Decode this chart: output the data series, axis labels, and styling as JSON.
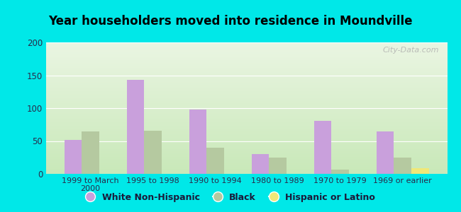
{
  "title": "Year householders moved into residence in Moundville",
  "categories": [
    "1999 to March\n2000",
    "1995 to 1998",
    "1990 to 1994",
    "1980 to 1989",
    "1970 to 1979",
    "1969 or earlier"
  ],
  "white_non_hispanic": [
    52,
    143,
    98,
    30,
    81,
    65
  ],
  "black": [
    65,
    66,
    40,
    25,
    6,
    25
  ],
  "hispanic_or_latino": [
    0,
    0,
    0,
    0,
    0,
    9
  ],
  "white_color": "#c9a0dc",
  "black_color": "#b5c9a0",
  "hispanic_color": "#f0e878",
  "bg_outer": "#00e8e8",
  "ylim": [
    0,
    200
  ],
  "yticks": [
    0,
    50,
    100,
    150,
    200
  ],
  "bar_width": 0.28,
  "legend_labels": [
    "White Non-Hispanic",
    "Black",
    "Hispanic or Latino"
  ],
  "watermark": "City-Data.com",
  "grad_top": "#eaf5e2",
  "grad_bottom": "#c8e8b8"
}
